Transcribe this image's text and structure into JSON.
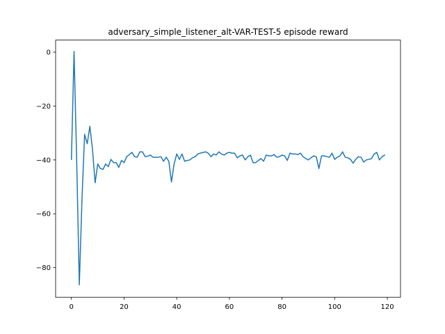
{
  "chart_data": {
    "type": "line",
    "title": "adversary_simple_listener_alt-VAR-TEST-5 episode reward",
    "xlabel": "",
    "ylabel": "",
    "xlim": [
      -6,
      125
    ],
    "ylim": [
      -91,
      4.5
    ],
    "x_ticks": [
      0,
      20,
      40,
      60,
      80,
      100,
      120
    ],
    "y_ticks": [
      0,
      -20,
      -40,
      -60,
      -80
    ],
    "x_tick_labels": [
      "0",
      "20",
      "40",
      "60",
      "80",
      "100",
      "120"
    ],
    "y_tick_labels": [
      "0",
      "−20",
      "−40",
      "−60",
      "−80"
    ],
    "grid": false,
    "line_color": "#1f77b4",
    "series": [
      {
        "values": [
          -39.8,
          0.3,
          -40.2,
          -86.4,
          -55.0,
          -30.5,
          -34.0,
          -27.5,
          -36.0,
          -48.5,
          -41.5,
          -43.2,
          -43.5,
          -41.5,
          -42.5,
          -39.8,
          -41.0,
          -41.0,
          -42.8,
          -40.2,
          -41.0,
          -38.8,
          -38.0,
          -37.2,
          -38.8,
          -39.0,
          -37.0,
          -37.0,
          -38.8,
          -38.6,
          -38.2,
          -39.0,
          -39.0,
          -39.0,
          -38.8,
          -40.5,
          -39.0,
          -40.5,
          -48.2,
          -41.5,
          -37.8,
          -39.8,
          -37.8,
          -40.5,
          -40.2,
          -40.0,
          -39.2,
          -38.8,
          -37.8,
          -37.5,
          -37.2,
          -37.0,
          -37.5,
          -38.8,
          -37.8,
          -38.2,
          -37.0,
          -37.8,
          -38.2,
          -37.5,
          -37.2,
          -37.5,
          -37.5,
          -39.2,
          -38.5,
          -38.2,
          -40.0,
          -38.8,
          -38.2,
          -41.0,
          -41.0,
          -40.2,
          -39.5,
          -40.5,
          -38.2,
          -38.5,
          -38.5,
          -38.0,
          -39.0,
          -38.8,
          -38.2,
          -38.5,
          -40.2,
          -37.5,
          -37.8,
          -37.8,
          -38.0,
          -37.5,
          -38.8,
          -39.5,
          -40.0,
          -39.2,
          -38.5,
          -38.8,
          -43.2,
          -38.5,
          -38.5,
          -38.8,
          -39.0,
          -37.5,
          -39.8,
          -39.0,
          -38.5,
          -37.0,
          -39.0,
          -39.2,
          -39.8,
          -41.2,
          -39.8,
          -38.8,
          -39.0,
          -40.8,
          -40.0,
          -39.8,
          -39.5,
          -37.8,
          -37.2,
          -40.0,
          -38.8,
          -38.2
        ]
      }
    ]
  }
}
